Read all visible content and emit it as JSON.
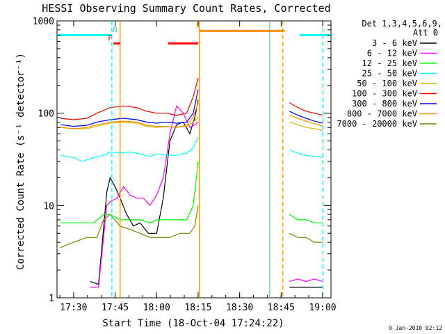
{
  "chart_data": {
    "type": "line",
    "title": "HESSI Observing Summary Count Rates, Corrected",
    "xlabel": "Start Time (18-Oct-04 17:24:22)",
    "ylabel": "Corrected Count Rate (s⁻¹ detector⁻¹)",
    "y_scale": "log",
    "ylim": [
      1,
      1000
    ],
    "xlim_minutes": [
      17.4,
      19.05
    ],
    "x_ticks": [
      {
        "label": "17:30",
        "value": 17.5
      },
      {
        "label": "17:45",
        "value": 17.75
      },
      {
        "label": "18:00",
        "value": 18.0
      },
      {
        "label": "18:15",
        "value": 18.25
      },
      {
        "label": "18:30",
        "value": 18.5
      },
      {
        "label": "18:45",
        "value": 18.75
      },
      {
        "label": "19:00",
        "value": 19.0
      }
    ],
    "y_ticks": [
      {
        "label": "1",
        "value": 1
      },
      {
        "label": "10",
        "value": 10
      },
      {
        "label": "100",
        "value": 100
      },
      {
        "label": "1000",
        "value": 1000
      }
    ],
    "legend_header": [
      "Det 1,3,4,5,6,9,",
      "Att 0"
    ],
    "legend_position": "right",
    "series": [
      {
        "name": "3 - 6 keV",
        "color": "#000000",
        "points": [
          [
            17.6,
            1.5
          ],
          [
            17.65,
            1.4
          ],
          [
            17.7,
            14
          ],
          [
            17.72,
            20
          ],
          [
            17.75,
            16
          ],
          [
            17.78,
            12
          ],
          [
            17.82,
            8
          ],
          [
            17.86,
            6
          ],
          [
            17.9,
            6.5
          ],
          [
            17.95,
            5
          ],
          [
            18.0,
            5
          ],
          [
            18.04,
            12
          ],
          [
            18.08,
            50
          ],
          [
            18.12,
            75
          ],
          [
            18.16,
            80
          ],
          [
            18.2,
            60
          ],
          [
            18.23,
            90
          ],
          [
            18.25,
            140
          ]
        ]
      },
      {
        "name": "6 - 12 keV",
        "color": "#ff00ff",
        "points": [
          [
            17.6,
            1.3
          ],
          [
            17.65,
            1.3
          ],
          [
            17.7,
            10
          ],
          [
            17.72,
            11
          ],
          [
            17.76,
            12
          ],
          [
            17.8,
            16
          ],
          [
            17.84,
            13
          ],
          [
            17.88,
            12
          ],
          [
            17.92,
            12
          ],
          [
            17.96,
            10
          ],
          [
            18.0,
            13
          ],
          [
            18.04,
            20
          ],
          [
            18.08,
            60
          ],
          [
            18.12,
            120
          ],
          [
            18.16,
            100
          ],
          [
            18.2,
            70
          ],
          [
            18.23,
            75
          ],
          [
            18.25,
            80
          ]
        ]
      },
      {
        "name": "12 - 25 keV",
        "color": "#00ff00",
        "points": [
          [
            17.42,
            6.5
          ],
          [
            17.5,
            6.5
          ],
          [
            17.58,
            6.5
          ],
          [
            17.62,
            6.5
          ],
          [
            17.68,
            8
          ],
          [
            17.72,
            8
          ],
          [
            17.78,
            7
          ],
          [
            17.84,
            7
          ],
          [
            17.9,
            7
          ],
          [
            17.96,
            6.5
          ],
          [
            18.0,
            7
          ],
          [
            18.08,
            7
          ],
          [
            18.14,
            7
          ],
          [
            18.18,
            7
          ],
          [
            18.22,
            10
          ],
          [
            18.25,
            30
          ]
        ]
      },
      {
        "name": "25 - 50 keV",
        "color": "#00ffff",
        "points": [
          [
            17.42,
            35
          ],
          [
            17.5,
            33
          ],
          [
            17.55,
            30
          ],
          [
            17.62,
            33
          ],
          [
            17.68,
            35
          ],
          [
            17.72,
            38
          ],
          [
            17.78,
            37
          ],
          [
            17.84,
            38
          ],
          [
            17.9,
            36
          ],
          [
            17.96,
            34
          ],
          [
            18.0,
            36
          ],
          [
            18.06,
            35
          ],
          [
            18.12,
            35
          ],
          [
            18.18,
            37
          ],
          [
            18.22,
            42
          ],
          [
            18.25,
            55
          ]
        ]
      },
      {
        "name": "50 - 100 keV",
        "color": "#d4b800",
        "points": [
          [
            17.42,
            70
          ],
          [
            17.5,
            68
          ],
          [
            17.58,
            68
          ],
          [
            17.64,
            72
          ],
          [
            17.72,
            78
          ],
          [
            17.8,
            80
          ],
          [
            17.88,
            78
          ],
          [
            17.94,
            72
          ],
          [
            18.0,
            70
          ],
          [
            18.06,
            72
          ],
          [
            18.12,
            70
          ],
          [
            18.18,
            72
          ],
          [
            18.22,
            80
          ],
          [
            18.25,
            90
          ]
        ]
      },
      {
        "name": "100 - 300 keV",
        "color": "#ff0000",
        "points": [
          [
            17.42,
            88
          ],
          [
            17.5,
            85
          ],
          [
            17.58,
            88
          ],
          [
            17.64,
            100
          ],
          [
            17.72,
            115
          ],
          [
            17.8,
            120
          ],
          [
            17.88,
            115
          ],
          [
            17.94,
            105
          ],
          [
            18.0,
            100
          ],
          [
            18.06,
            100
          ],
          [
            18.12,
            95
          ],
          [
            18.18,
            100
          ],
          [
            18.22,
            150
          ],
          [
            18.25,
            240
          ]
        ]
      },
      {
        "name": "300 - 800 keV",
        "color": "#0000ff",
        "points": [
          [
            17.42,
            75
          ],
          [
            17.5,
            72
          ],
          [
            17.58,
            74
          ],
          [
            17.64,
            80
          ],
          [
            17.72,
            85
          ],
          [
            17.8,
            88
          ],
          [
            17.88,
            85
          ],
          [
            17.94,
            80
          ],
          [
            18.0,
            78
          ],
          [
            18.06,
            80
          ],
          [
            18.12,
            78
          ],
          [
            18.18,
            80
          ],
          [
            18.22,
            100
          ],
          [
            18.25,
            180
          ]
        ]
      },
      {
        "name": "800 - 7000 keV",
        "color": "#ff8c00",
        "points": [
          [
            17.42,
            70
          ],
          [
            17.5,
            68
          ],
          [
            17.58,
            70
          ],
          [
            17.64,
            75
          ],
          [
            17.72,
            80
          ],
          [
            17.8,
            82
          ],
          [
            17.88,
            80
          ],
          [
            17.94,
            74
          ],
          [
            18.0,
            72
          ],
          [
            18.06,
            72
          ],
          [
            18.12,
            70
          ],
          [
            18.18,
            74
          ],
          [
            18.22,
            90
          ],
          [
            18.25,
            130
          ]
        ]
      },
      {
        "name": "7000 - 20000 keV",
        "color": "#808000",
        "points": [
          [
            17.42,
            3.5
          ],
          [
            17.5,
            4
          ],
          [
            17.58,
            4.5
          ],
          [
            17.64,
            4.5
          ],
          [
            17.68,
            7
          ],
          [
            17.72,
            8
          ],
          [
            17.78,
            6
          ],
          [
            17.84,
            5.5
          ],
          [
            17.9,
            5
          ],
          [
            17.96,
            4.5
          ],
          [
            18.0,
            4.5
          ],
          [
            18.08,
            4.5
          ],
          [
            18.14,
            5
          ],
          [
            18.2,
            5
          ],
          [
            18.23,
            6
          ],
          [
            18.25,
            10
          ]
        ]
      }
    ],
    "series_after": [
      {
        "color": "#000000",
        "points": [
          [
            18.8,
            1.3
          ],
          [
            18.9,
            1.3
          ],
          [
            19.0,
            1.3
          ]
        ]
      },
      {
        "color": "#ff00ff",
        "points": [
          [
            18.8,
            1.5
          ],
          [
            18.85,
            1.6
          ],
          [
            18.9,
            1.5
          ],
          [
            18.95,
            1.6
          ],
          [
            19.0,
            1.5
          ]
        ]
      },
      {
        "color": "#00ff00",
        "points": [
          [
            18.8,
            8
          ],
          [
            18.85,
            7
          ],
          [
            18.9,
            7
          ],
          [
            18.95,
            6.5
          ],
          [
            19.0,
            6.5
          ]
        ]
      },
      {
        "color": "#00ffff",
        "points": [
          [
            18.8,
            40
          ],
          [
            18.85,
            37
          ],
          [
            18.9,
            35
          ],
          [
            18.95,
            34
          ],
          [
            19.0,
            33
          ]
        ]
      },
      {
        "color": "#d4b800",
        "points": [
          [
            18.8,
            80
          ],
          [
            18.85,
            75
          ],
          [
            18.9,
            70
          ],
          [
            18.95,
            68
          ],
          [
            19.0,
            65
          ]
        ]
      },
      {
        "color": "#ff0000",
        "points": [
          [
            18.8,
            130
          ],
          [
            18.85,
            115
          ],
          [
            18.9,
            105
          ],
          [
            18.95,
            100
          ],
          [
            19.0,
            95
          ]
        ]
      },
      {
        "color": "#0000ff",
        "points": [
          [
            18.8,
            105
          ],
          [
            18.85,
            95
          ],
          [
            18.9,
            88
          ],
          [
            18.95,
            82
          ],
          [
            19.0,
            78
          ]
        ]
      },
      {
        "color": "#ff8c00",
        "points": [
          [
            18.8,
            95
          ],
          [
            18.85,
            88
          ],
          [
            18.9,
            82
          ],
          [
            18.95,
            77
          ],
          [
            19.0,
            72
          ]
        ]
      },
      {
        "color": "#808000",
        "points": [
          [
            18.8,
            5
          ],
          [
            18.85,
            4.5
          ],
          [
            18.9,
            4.5
          ],
          [
            18.95,
            4
          ],
          [
            19.0,
            4
          ]
        ]
      }
    ],
    "flag_bars": [
      {
        "label": "N",
        "color": "#00ffff",
        "y": 700,
        "segments": [
          [
            17.4,
            17.73
          ],
          [
            18.86,
            19.05
          ]
        ],
        "label_at": 17.75
      },
      {
        "label": "F",
        "color": "#ff0000",
        "y": 570,
        "segments": [
          [
            17.74,
            17.78
          ],
          [
            18.07,
            18.25
          ]
        ],
        "label_at": 17.72
      },
      {
        "label": "S",
        "color": "#ff8c00",
        "y": 780,
        "segments": [
          [
            18.26,
            18.77
          ]
        ],
        "label_at": 18.25
      }
    ],
    "vertical_markers": [
      {
        "x": 17.73,
        "color": "#00ffff",
        "style": "dashed"
      },
      {
        "x": 17.78,
        "color": "#ff8c00",
        "style": "solid"
      },
      {
        "x": 18.257,
        "color": "#ff8c00",
        "style": "solid"
      },
      {
        "x": 18.68,
        "color": "#00ffff",
        "style": "solid"
      },
      {
        "x": 18.76,
        "color": "#ff8c00",
        "style": "dashed"
      },
      {
        "x": 19.0,
        "color": "#00ffff",
        "style": "dashed"
      }
    ]
  },
  "footer_date": "9-Jan-2010 02:12"
}
